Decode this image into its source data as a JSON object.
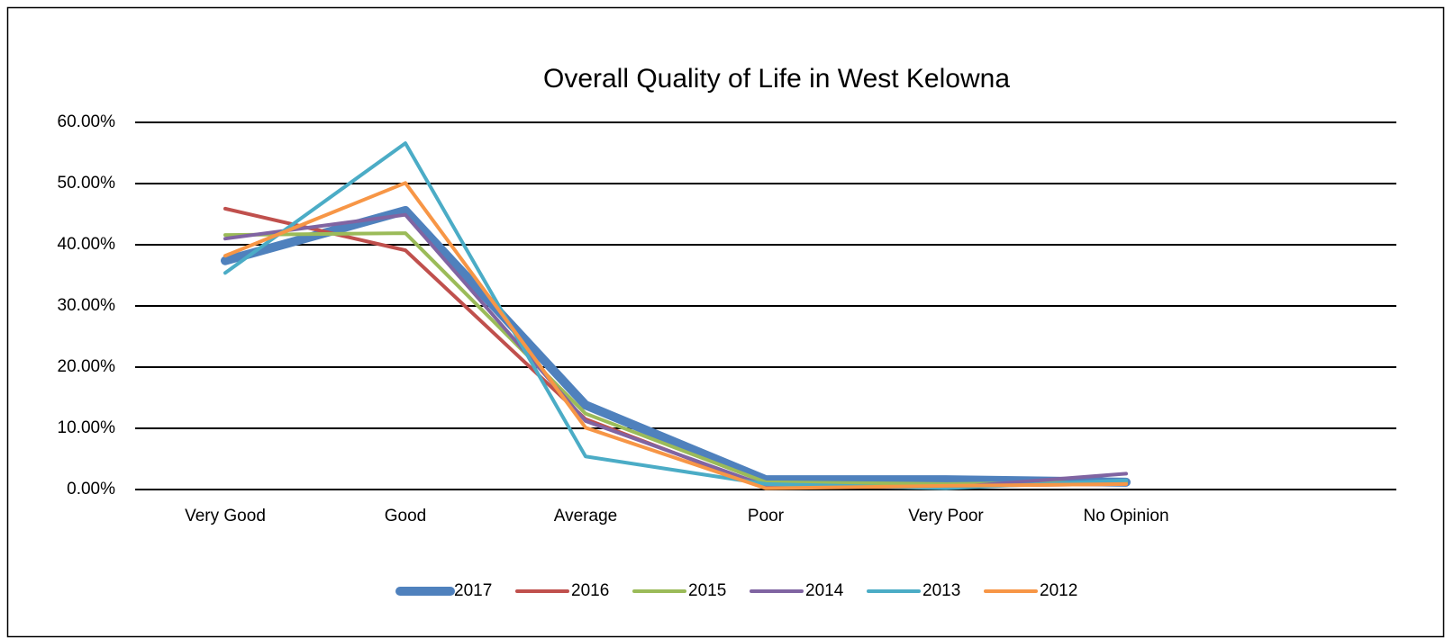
{
  "chart_data": {
    "type": "line",
    "title": "Overall Quality of Life in West Kelowna",
    "categories": [
      "Very Good",
      "Good",
      "Average",
      "Poor",
      "Very Poor",
      "No Opinion",
      null
    ],
    "series": [
      {
        "name": "2017",
        "color": "#4f81bd",
        "width": 10,
        "values": [
          37.4,
          45.6,
          13.8,
          1.6,
          1.6,
          1.2,
          null
        ]
      },
      {
        "name": "2016",
        "color": "#c0504d",
        "width": 4,
        "values": [
          45.9,
          39.1,
          11.5,
          0.3,
          0.6,
          0.9,
          null
        ]
      },
      {
        "name": "2015",
        "color": "#9bbb59",
        "width": 4,
        "values": [
          41.6,
          41.9,
          12.4,
          1.2,
          0.9,
          1.2,
          null
        ]
      },
      {
        "name": "2014",
        "color": "#8064a2",
        "width": 4,
        "values": [
          41.0,
          44.9,
          11.2,
          0.6,
          0.3,
          2.6,
          null
        ]
      },
      {
        "name": "2013",
        "color": "#4bacc6",
        "width": 4,
        "values": [
          35.4,
          56.6,
          5.4,
          0.9,
          0.2,
          1.5,
          null
        ]
      },
      {
        "name": "2012",
        "color": "#f79646",
        "width": 4,
        "values": [
          38.2,
          50.1,
          10.1,
          0.2,
          0.6,
          0.9,
          null
        ]
      }
    ],
    "ylim": [
      0,
      60
    ],
    "yticks": [
      {
        "value": 0,
        "label": "0.00%"
      },
      {
        "value": 10,
        "label": "10.00%"
      },
      {
        "value": 20,
        "label": "20.00%"
      },
      {
        "value": 30,
        "label": "30.00%"
      },
      {
        "value": 40,
        "label": "40.00%"
      },
      {
        "value": 50,
        "label": "50.00%"
      },
      {
        "value": 60,
        "label": "60.00%"
      }
    ],
    "grid": true,
    "legend": "bottom"
  }
}
